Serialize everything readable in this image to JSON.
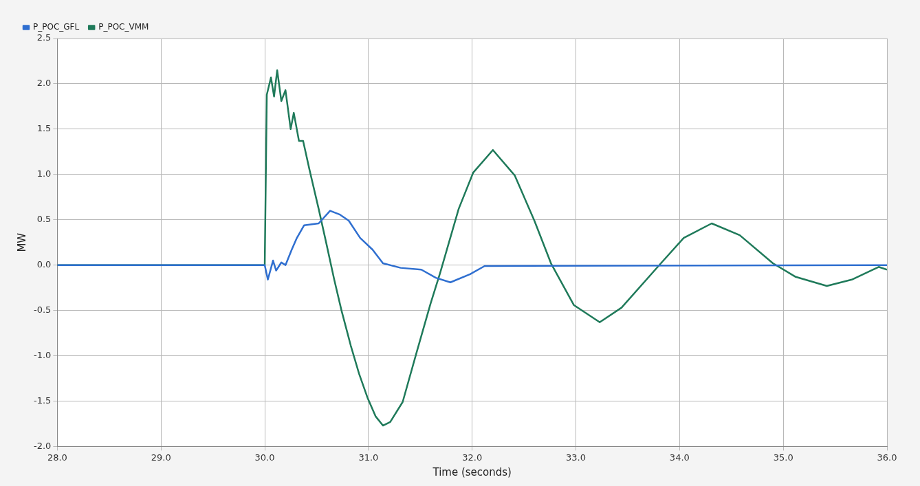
{
  "chart_data": {
    "type": "line",
    "xlabel": "Time (seconds)",
    "ylabel": "MW",
    "xlim": [
      28,
      36
    ],
    "ylim": [
      -2,
      2.5
    ],
    "xticks": [
      {
        "value": 28,
        "label": "28.0"
      },
      {
        "value": 29,
        "label": "29.0"
      },
      {
        "value": 30,
        "label": "30.0"
      },
      {
        "value": 31,
        "label": "31.0"
      },
      {
        "value": 32,
        "label": "32.0"
      },
      {
        "value": 33,
        "label": "33.0"
      },
      {
        "value": 34,
        "label": "34.0"
      },
      {
        "value": 35,
        "label": "35.0"
      },
      {
        "value": 36,
        "label": "36.0"
      }
    ],
    "yticks": [
      {
        "value": -2,
        "label": "-2.0"
      },
      {
        "value": -1.5,
        "label": "-1.5"
      },
      {
        "value": -1,
        "label": "-1.0"
      },
      {
        "value": -0.5,
        "label": "-0.5"
      },
      {
        "value": 0,
        "label": "0.0"
      },
      {
        "value": 0.5,
        "label": "0.5"
      },
      {
        "value": 1,
        "label": "1.0"
      },
      {
        "value": 1.5,
        "label": "1.5"
      },
      {
        "value": 2,
        "label": "2.0"
      },
      {
        "value": 2.5,
        "label": "2.5"
      }
    ],
    "grid": true,
    "legend": "top left",
    "marker": "none",
    "line_style": "solid",
    "series": [
      {
        "name": "P_POC_GFL",
        "color": "#2f6fd0",
        "x": [
          28,
          30,
          30.03,
          30.08,
          30.11,
          30.16,
          30.2,
          30.26,
          30.31,
          30.38,
          30.52,
          30.63,
          30.72,
          30.81,
          30.92,
          31.04,
          31.14,
          31.31,
          31.51,
          31.65,
          31.79,
          31.98,
          32.12,
          36
        ],
        "values": [
          0,
          0,
          -0.16,
          0.05,
          -0.06,
          0.03,
          0,
          0.17,
          0.3,
          0.44,
          0.46,
          0.6,
          0.56,
          0.49,
          0.3,
          0.17,
          0.02,
          -0.03,
          -0.05,
          -0.14,
          -0.19,
          -0.1,
          -0.01,
          0
        ]
      },
      {
        "name": "P_POC_VMM",
        "color": "#1f7a5a",
        "x": [
          28,
          30,
          30.02,
          30.06,
          30.09,
          30.12,
          30.16,
          30.2,
          30.25,
          30.28,
          30.33,
          30.37,
          30.43,
          30.52,
          30.59,
          30.67,
          30.74,
          30.83,
          30.91,
          30.99,
          31.07,
          31.14,
          31.21,
          31.33,
          31.47,
          31.6,
          31.69,
          31.87,
          32.01,
          32.2,
          32.41,
          32.6,
          32.76,
          32.98,
          33.23,
          33.44,
          33.82,
          34.04,
          34.31,
          34.58,
          34.9,
          35.12,
          35.42,
          35.66,
          35.92,
          36
        ],
        "values": [
          0,
          0,
          1.88,
          2.07,
          1.86,
          2.15,
          1.81,
          1.93,
          1.5,
          1.68,
          1.37,
          1.37,
          1.06,
          0.62,
          0.26,
          -0.16,
          -0.5,
          -0.89,
          -1.2,
          -1.46,
          -1.67,
          -1.77,
          -1.73,
          -1.51,
          -0.94,
          -0.42,
          -0.09,
          0.62,
          1.02,
          1.27,
          0.99,
          0.49,
          0.02,
          -0.44,
          -0.63,
          -0.47,
          0.02,
          0.3,
          0.46,
          0.33,
          0.02,
          -0.13,
          -0.23,
          -0.16,
          -0.02,
          -0.05
        ]
      }
    ]
  }
}
